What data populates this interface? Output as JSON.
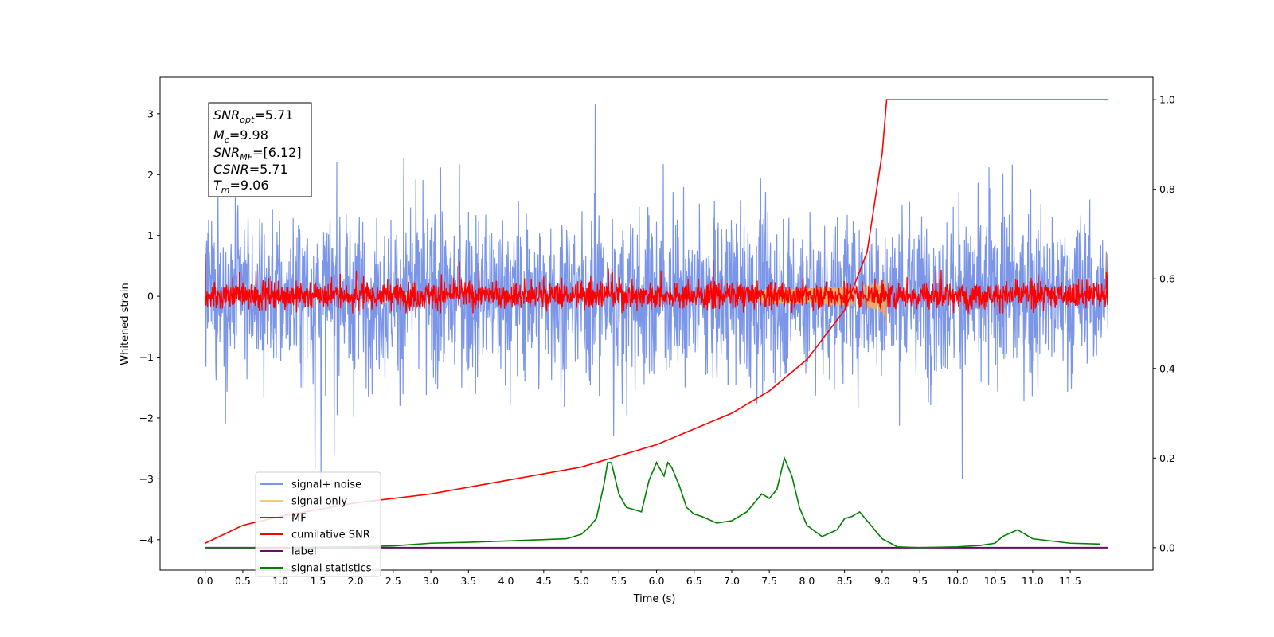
{
  "chart_data": {
    "type": "line",
    "xlabel": "Time (s)",
    "ylabel": "Whitened strain",
    "xlim": [
      -0.6,
      12.6
    ],
    "ylim_left": [
      -4.5,
      3.6
    ],
    "ylim_right": [
      -0.05,
      1.05
    ],
    "x_ticks": [
      "0.0",
      "0.5",
      "1.0",
      "1.5",
      "2.0",
      "2.5",
      "3.0",
      "3.5",
      "4.0",
      "4.5",
      "5.0",
      "5.5",
      "6.0",
      "6.5",
      "7.0",
      "7.5",
      "8.0",
      "8.5",
      "9.0",
      "9.5",
      "10.0",
      "10.5",
      "11.0",
      "11.5"
    ],
    "y_ticks_left": [
      "3",
      "2",
      "1",
      "0",
      "−1",
      "−2",
      "−3",
      "−4"
    ],
    "y_ticks_right": [
      "1.0",
      "0.8",
      "0.6",
      "0.4",
      "0.2",
      "0.0"
    ],
    "annotation": {
      "lines": [
        {
          "base": "SNR",
          "sub": "opt",
          "value": "=5.71"
        },
        {
          "base": "M",
          "sub": "c",
          "value": "=9.98"
        },
        {
          "base": "SNR",
          "sub": "MF",
          "value": "=[6.12]"
        },
        {
          "base": "CSNR",
          "sub": "",
          "value": "=5.71"
        },
        {
          "base": "T",
          "sub": "m",
          "value": "=9.06"
        }
      ]
    },
    "legend_position": "lower-left",
    "series": [
      {
        "name": "signal+ noise",
        "color": "#7b96e8",
        "axis": "left",
        "description_range": [
          -3.0,
          3.3
        ],
        "x_range": [
          0.0,
          12.0
        ]
      },
      {
        "name": "signal only",
        "color": "#f5c97a",
        "axis": "left",
        "chirp_end": 9.06,
        "peak_amplitude": 0.6
      },
      {
        "name": "MF",
        "color": "#ff0000",
        "axis": "left",
        "x_range": [
          0.0,
          12.0
        ]
      },
      {
        "name": "cumilative SNR",
        "color": "#ff0000",
        "axis": "right",
        "x": [
          0.0,
          0.5,
          1.0,
          2.0,
          3.0,
          4.0,
          5.0,
          6.0,
          7.0,
          7.5,
          8.0,
          8.5,
          8.8,
          9.0,
          9.06,
          12.0
        ],
        "values": [
          0.01,
          0.05,
          0.07,
          0.1,
          0.12,
          0.15,
          0.18,
          0.23,
          0.3,
          0.35,
          0.42,
          0.53,
          0.66,
          0.88,
          1.0,
          1.0
        ]
      },
      {
        "name": "label",
        "color": "#6a0a6a",
        "axis": "right",
        "x": [
          0.0,
          12.0
        ],
        "values": [
          0.0,
          0.0
        ]
      },
      {
        "name": "signal statistics",
        "color": "#008000",
        "axis": "right",
        "x": [
          0.0,
          1.0,
          2.0,
          2.5,
          3.0,
          3.5,
          4.0,
          4.5,
          4.8,
          5.0,
          5.1,
          5.2,
          5.3,
          5.35,
          5.4,
          5.5,
          5.6,
          5.7,
          5.8,
          5.9,
          6.0,
          6.1,
          6.15,
          6.2,
          6.3,
          6.4,
          6.5,
          6.6,
          6.8,
          7.0,
          7.2,
          7.4,
          7.5,
          7.6,
          7.7,
          7.8,
          7.9,
          8.0,
          8.2,
          8.4,
          8.5,
          8.6,
          8.7,
          8.8,
          8.9,
          9.0,
          9.2,
          9.5,
          10.0,
          10.3,
          10.5,
          10.6,
          10.8,
          11.0,
          11.5,
          11.9
        ],
        "values": [
          0.0,
          0.0,
          0.002,
          0.004,
          0.01,
          0.012,
          0.015,
          0.018,
          0.02,
          0.03,
          0.045,
          0.065,
          0.14,
          0.19,
          0.19,
          0.12,
          0.09,
          0.085,
          0.08,
          0.15,
          0.19,
          0.16,
          0.19,
          0.18,
          0.14,
          0.09,
          0.075,
          0.07,
          0.055,
          0.06,
          0.08,
          0.12,
          0.11,
          0.13,
          0.2,
          0.16,
          0.09,
          0.05,
          0.025,
          0.04,
          0.065,
          0.07,
          0.08,
          0.06,
          0.04,
          0.02,
          0.002,
          0.0,
          0.002,
          0.005,
          0.01,
          0.025,
          0.04,
          0.02,
          0.01,
          0.008
        ]
      }
    ]
  }
}
